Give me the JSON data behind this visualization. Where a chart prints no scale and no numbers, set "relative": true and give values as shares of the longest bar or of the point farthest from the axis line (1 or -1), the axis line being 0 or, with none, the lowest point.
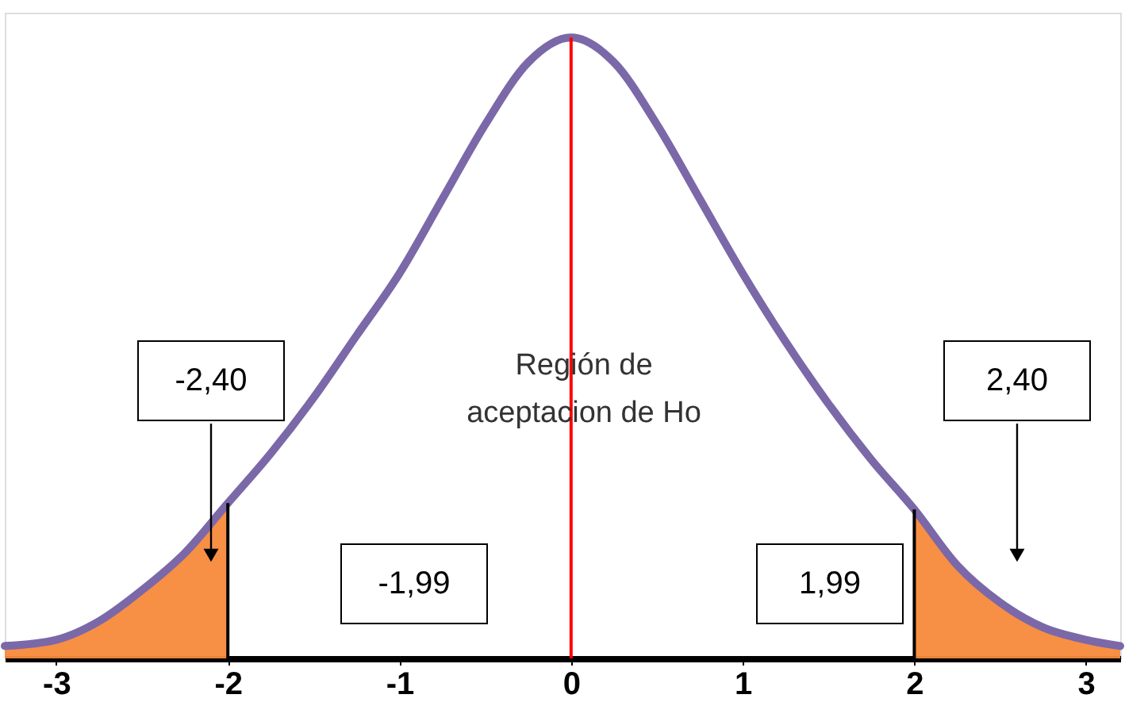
{
  "chart_data": {
    "type": "line",
    "relative": true,
    "xlim": [
      -3.3,
      3.2
    ],
    "xticks": [
      -3,
      -2,
      -1,
      0,
      1,
      2,
      3
    ],
    "grid": false,
    "marker": "none",
    "line_style": "solid",
    "series": [
      {
        "color": "#7b68a8",
        "x": [
          -3.3,
          -3,
          -2.75,
          -2.5,
          -2.25,
          -2,
          -1.75,
          -1.5,
          -1.25,
          -1,
          -0.75,
          -0.5,
          -0.25,
          0,
          0.25,
          0.5,
          0.75,
          1,
          1.25,
          1.5,
          1.75,
          2,
          2.25,
          2.5,
          2.75,
          3,
          3.2
        ],
        "values": [
          0.02,
          0.03,
          0.06,
          0.11,
          0.17,
          0.25,
          0.33,
          0.42,
          0.52,
          0.62,
          0.74,
          0.86,
          0.96,
          1,
          0.96,
          0.86,
          0.74,
          0.62,
          0.51,
          0.41,
          0.32,
          0.24,
          0.15,
          0.09,
          0.05,
          0.03,
          0.02
        ]
      },
      {
        "type": "area",
        "color": "#f7893b",
        "x": [
          -3.3,
          -3,
          -2.75,
          -2.5,
          -2.25,
          -2
        ],
        "values": [
          0.02,
          0.03,
          0.06,
          0.11,
          0.17,
          0.25
        ]
      },
      {
        "type": "area",
        "color": "#f7893b",
        "x": [
          2,
          2.25,
          2.5,
          2.75,
          3,
          3.2
        ],
        "values": [
          0.24,
          0.15,
          0.09,
          0.05,
          0.03,
          0.02
        ]
      }
    ],
    "ref_lines": [
      {
        "axis": "x",
        "value": 0,
        "color": "#ff0000"
      },
      {
        "axis": "x",
        "value": -2,
        "color": "#000000"
      },
      {
        "axis": "x",
        "value": 2,
        "color": "#000000"
      }
    ],
    "annotations": [
      "Región de",
      "aceptacion de Ho",
      "-2,40",
      "2,40",
      "-1,99",
      "1,99"
    ]
  }
}
